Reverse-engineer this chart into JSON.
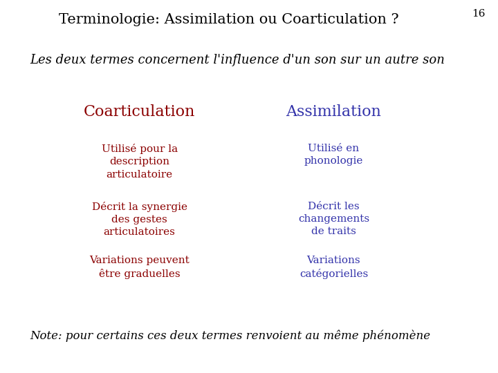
{
  "title": "Terminologie: Assimilation ou Coarticulation ?",
  "slide_number": "16",
  "subtitle": "Les deux termes concernent l'influence d'un son sur un autre son",
  "col_left_header": "Coarticulation",
  "col_right_header": "Assimilation",
  "col_left_items": [
    "Utilisé pour la\ndescription\narticulatoire",
    "Décrit la synergie\ndes gestes\narticulatoires",
    "Variations peuvent\nêtre graduelles"
  ],
  "col_right_items": [
    "Utilisé en\nphonologie",
    "Décrit les\nchangements\nde traits",
    "Variations\ncatégorielles"
  ],
  "note": "Note: pour certains ces deux termes renvoient au même phénomène",
  "title_color": "#000000",
  "title_fontsize": 15,
  "subtitle_color": "#000000",
  "subtitle_fontsize": 13,
  "col_left_color": "#8B0000",
  "col_right_color": "#3333AA",
  "col_header_fontsize": 16,
  "col_item_fontsize": 11,
  "note_color": "#000000",
  "note_fontsize": 12,
  "slide_number_fontsize": 11,
  "background_color": "#FFFFFF"
}
